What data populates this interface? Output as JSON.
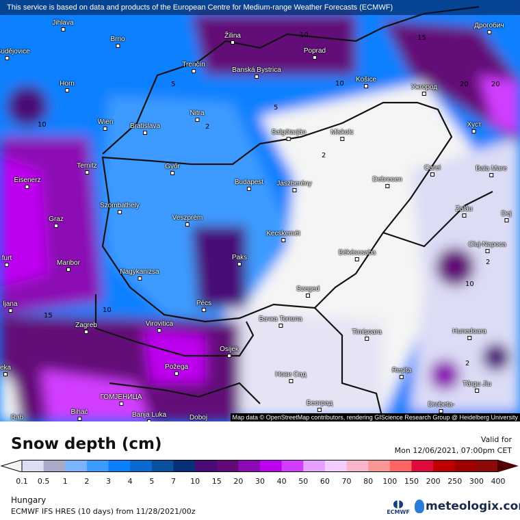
{
  "banner": "This service is based on data and products of the European Centre for Medium-range Weather Forecasts (ECMWF)",
  "attribution": "Map data © OpenStreetMap contributors, rendering GIScience Research Group @ Heidelberg University",
  "title": "Snow depth (cm)",
  "valid_label": "Valid for",
  "valid_time": "Mon 12/06/2021, 07:00pm CET",
  "region": "Hungary",
  "model": "ECMWF IFS HRES (10 days) from 11/28/2021/00z",
  "logos": {
    "ecmwf": "ECMWF",
    "meteologix": "meteologix.com"
  },
  "legend": {
    "ticks": [
      "0.1",
      "0.5",
      "1",
      "2",
      "3",
      "4",
      "5",
      "7",
      "10",
      "15",
      "20",
      "30",
      "40",
      "50",
      "60",
      "70",
      "80",
      "100",
      "150",
      "200",
      "250",
      "300",
      "400"
    ],
    "below_color": "#f5f5f5",
    "above_color": "#500000",
    "colors": [
      "#dcdcf5",
      "#aaaac8",
      "#78b4ff",
      "#3c9bff",
      "#0a80ff",
      "#0a6ad2",
      "#0a50a0",
      "#08307a",
      "#4a0a78",
      "#640a78",
      "#8c0ab4",
      "#be00f0",
      "#d23cff",
      "#e6a0ff",
      "#f5ccff",
      "#f8b4c8",
      "#fa9696",
      "#ff6464",
      "#e10a3c",
      "#be0000",
      "#a00000",
      "#8c0a0a"
    ]
  },
  "cities": [
    "Jihlava",
    "Brno",
    "Žilina",
    "Poprad",
    "Дрогобич",
    "ské Budějovice",
    "Trenčín",
    "Banská Bystrica",
    "Košice",
    "Ужгород",
    "Horn",
    "Wien",
    "Bratislava",
    "Nitra",
    "Salgótarján",
    "Miskolc",
    "Хуст",
    "Ternitz",
    "Győr",
    "Budapest",
    "Jászberény",
    "Debrecen",
    "Carei",
    "Baia Mare",
    "Eisenerz",
    "Szombathely",
    "Veszprém",
    "Zalău",
    "Dej",
    "Graz",
    "Kecskemét",
    "Cluj-Napoca",
    "Paks",
    "Békéscsaba",
    "furt",
    "Maribor",
    "Nagykanizsa",
    "Szeged",
    "Pécs",
    "ljana",
    "Zagreb",
    "Virovitica",
    "Бачка Топола",
    "Timișoara",
    "Hunedoara",
    "Osijek",
    "Požega",
    "Нови Сад",
    "Reșița",
    "eka",
    "Târgu Jiu",
    "ГОМЈЕНИЦА",
    "Bihać",
    "Banja Luka",
    "Doboj",
    "Београд",
    "Drobeta-",
    "Rab"
  ],
  "contour_labels": [
    "10",
    "15",
    "20",
    "20",
    "5",
    "2",
    "2",
    "5",
    "10",
    "10",
    "2",
    "10",
    "15",
    "2",
    "10"
  ]
}
